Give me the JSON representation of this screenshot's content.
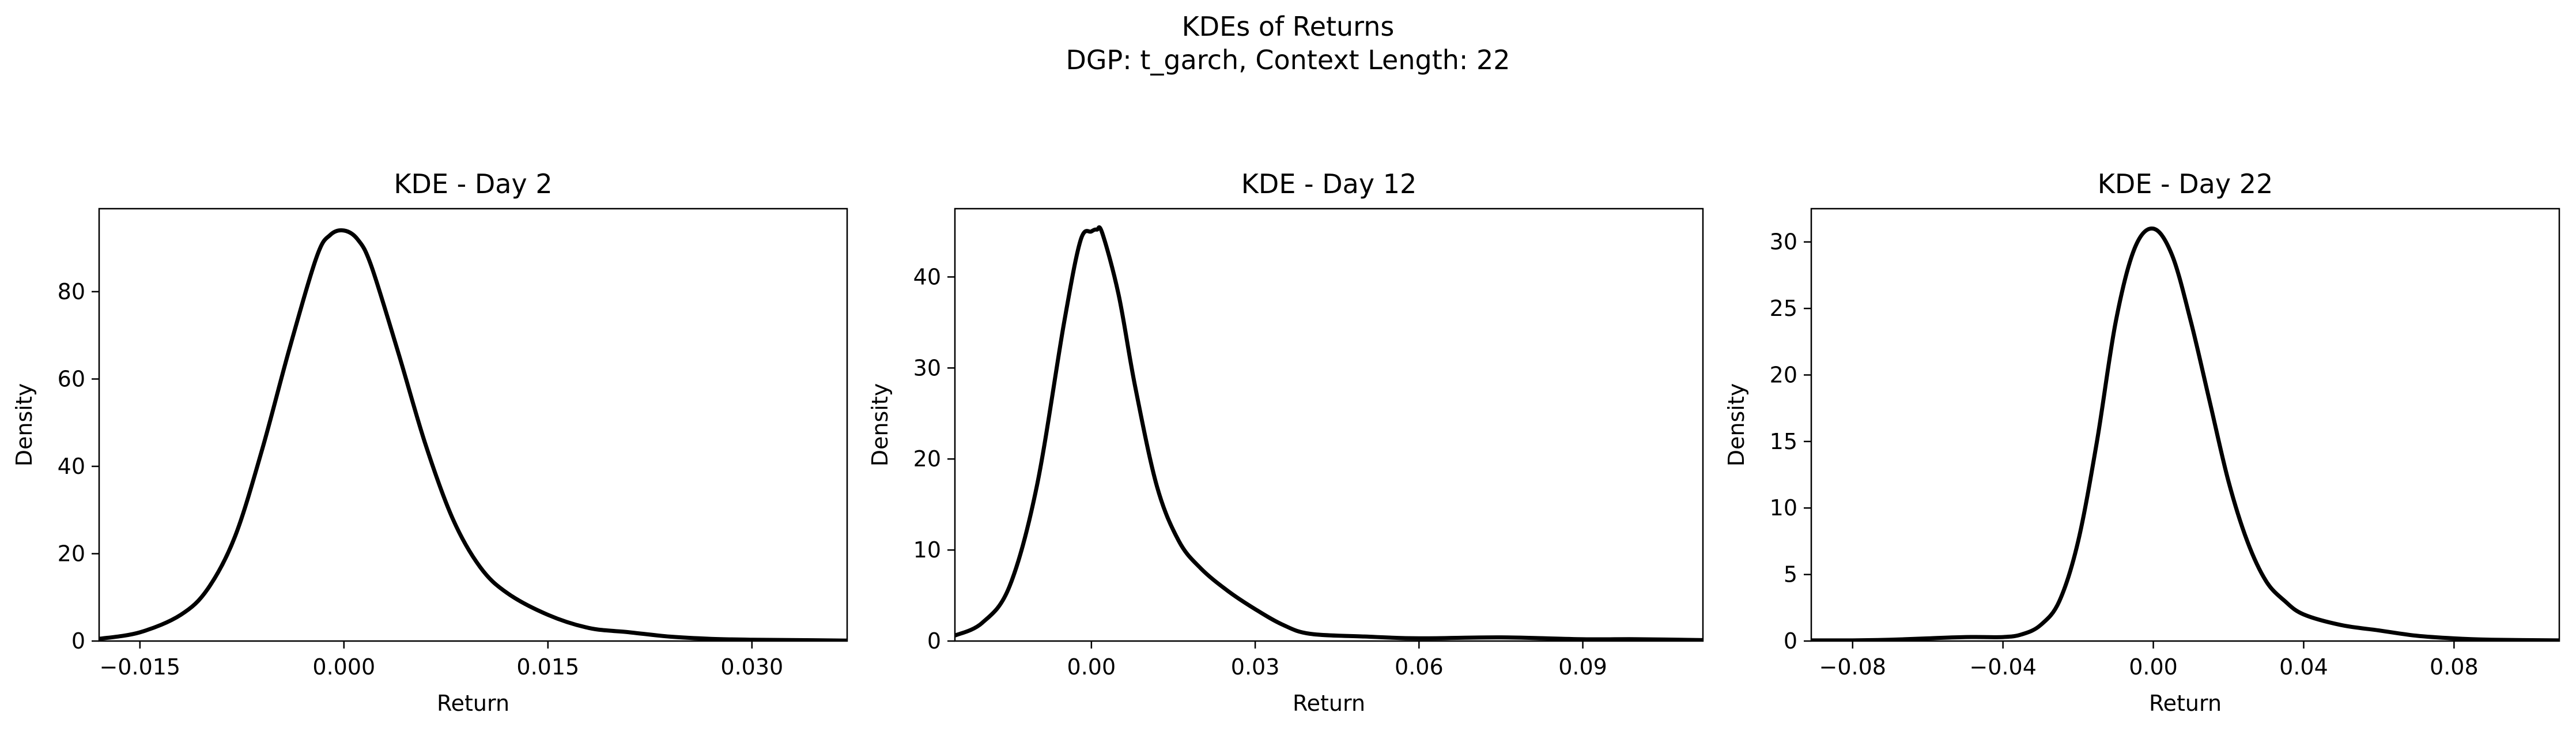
{
  "figure": {
    "title_line1": "KDEs of Returns",
    "title_line2": "DGP: t_garch, Context Length: 22"
  },
  "chart_data": [
    {
      "type": "line",
      "title": "KDE - Day 2",
      "xlabel": "Return",
      "ylabel": "Density",
      "xlim": [
        -0.018,
        0.037
      ],
      "ylim": [
        0,
        99
      ],
      "xticks": [
        -0.015,
        0.0,
        0.015,
        0.03
      ],
      "xtick_labels": [
        "−0.015",
        "0.000",
        "0.015",
        "0.030"
      ],
      "yticks": [
        0,
        20,
        40,
        60,
        80
      ],
      "ytick_labels": [
        "0",
        "20",
        "40",
        "60",
        "80"
      ],
      "grid": false,
      "line_color": "#000000",
      "series": [
        {
          "x": [
            -0.018,
            -0.015,
            -0.012,
            -0.01,
            -0.008,
            -0.006,
            -0.004,
            -0.002,
            -0.001,
            0.0,
            0.001,
            0.002,
            0.004,
            0.006,
            0.008,
            0.01,
            0.012,
            0.015,
            0.018,
            0.021,
            0.024,
            0.027,
            0.03,
            0.034,
            0.037
          ],
          "y": [
            0.5,
            2,
            6,
            12,
            24,
            44,
            67,
            88,
            93,
            94,
            92,
            86,
            66,
            45,
            28,
            17,
            11,
            6,
            3,
            2,
            1,
            0.5,
            0.3,
            0.2,
            0.1
          ]
        }
      ]
    },
    {
      "type": "line",
      "title": "KDE - Day 12",
      "xlabel": "Return",
      "ylabel": "Density",
      "xlim": [
        -0.025,
        0.112
      ],
      "ylim": [
        0,
        47.5
      ],
      "xticks": [
        0.0,
        0.03,
        0.06,
        0.09
      ],
      "xtick_labels": [
        "0.00",
        "0.03",
        "0.06",
        "0.09"
      ],
      "yticks": [
        0,
        10,
        20,
        30,
        40
      ],
      "ytick_labels": [
        "0",
        "10",
        "20",
        "30",
        "40"
      ],
      "grid": false,
      "line_color": "#000000",
      "series": [
        {
          "x": [
            -0.025,
            -0.02,
            -0.015,
            -0.01,
            -0.005,
            -0.002,
            0.0,
            0.001,
            0.002,
            0.005,
            0.008,
            0.012,
            0.016,
            0.02,
            0.025,
            0.03,
            0.035,
            0.04,
            0.05,
            0.06,
            0.075,
            0.09,
            0.1,
            0.112
          ],
          "y": [
            0.6,
            2,
            6,
            17,
            35,
            44,
            45,
            45.2,
            44.8,
            38,
            28,
            17,
            11,
            8,
            5.5,
            3.5,
            1.8,
            0.8,
            0.5,
            0.3,
            0.4,
            0.2,
            0.2,
            0.1
          ]
        }
      ]
    },
    {
      "type": "line",
      "title": "KDE - Day 22",
      "xlabel": "Return",
      "ylabel": "Density",
      "xlim": [
        -0.091,
        0.108
      ],
      "ylim": [
        0,
        32.5
      ],
      "xticks": [
        -0.08,
        -0.04,
        0.0,
        0.04,
        0.08
      ],
      "xtick_labels": [
        "−0.08",
        "−0.04",
        "0.00",
        "0.04",
        "0.08"
      ],
      "yticks": [
        0,
        5,
        10,
        15,
        20,
        25,
        30
      ],
      "ytick_labels": [
        "0",
        "5",
        "10",
        "15",
        "20",
        "25",
        "30"
      ],
      "grid": false,
      "line_color": "#000000",
      "series": [
        {
          "x": [
            -0.091,
            -0.08,
            -0.07,
            -0.06,
            -0.05,
            -0.04,
            -0.035,
            -0.03,
            -0.025,
            -0.02,
            -0.015,
            -0.01,
            -0.005,
            0.0,
            0.005,
            0.01,
            0.015,
            0.02,
            0.025,
            0.03,
            0.035,
            0.04,
            0.05,
            0.06,
            0.07,
            0.08,
            0.09,
            0.108
          ],
          "y": [
            0.05,
            0.05,
            0.1,
            0.2,
            0.3,
            0.3,
            0.5,
            1.2,
            3,
            7.5,
            15,
            24,
            29.5,
            31,
            29,
            24,
            18,
            12,
            7.5,
            4.5,
            3,
            2,
            1.2,
            0.8,
            0.4,
            0.2,
            0.1,
            0.05
          ]
        }
      ]
    }
  ]
}
